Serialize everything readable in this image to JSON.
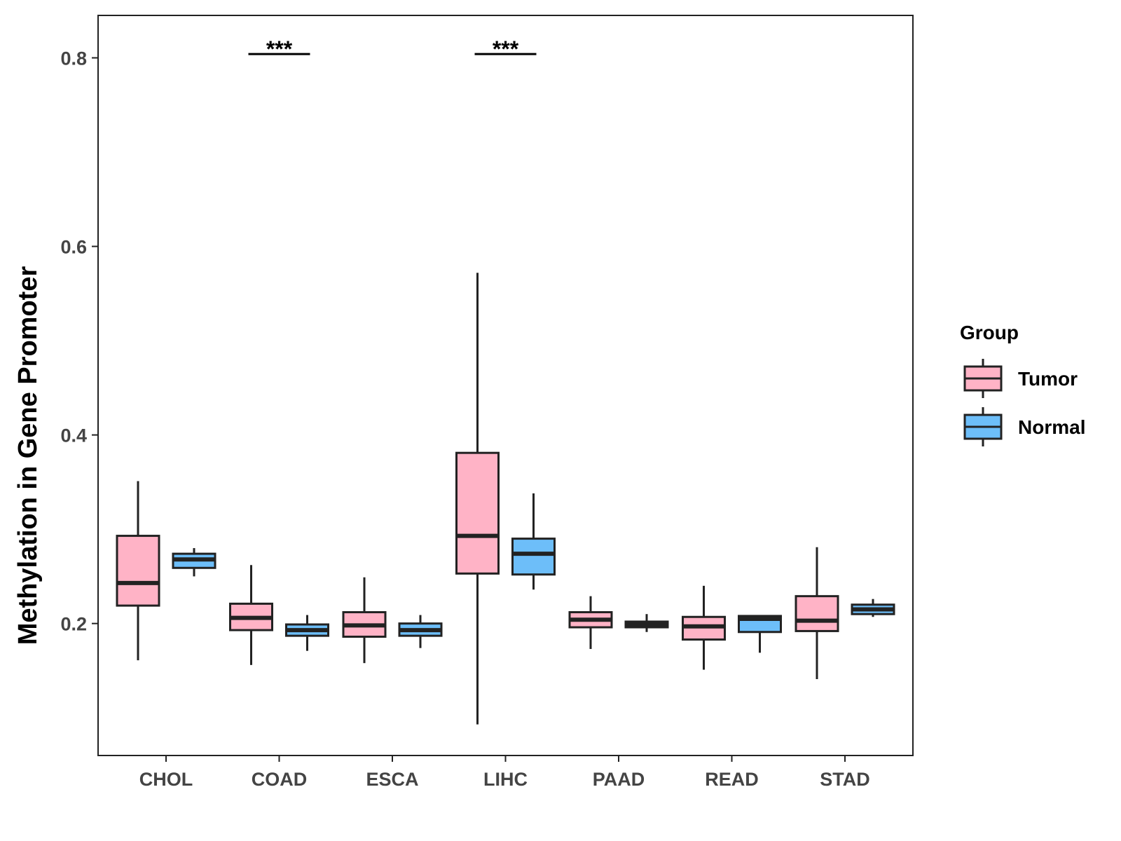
{
  "chart_data": {
    "type": "boxplot",
    "title": "",
    "xlabel": "",
    "ylabel": "Methylation in Gene Promoter",
    "ylim": [
      0.06,
      0.845
    ],
    "yticks": [
      0.2,
      0.4,
      0.6,
      0.8
    ],
    "ytick_labels": [
      "0.2",
      "0.4",
      "0.6",
      "0.8"
    ],
    "grid": false,
    "categories": [
      "CHOL",
      "COAD",
      "ESCA",
      "LIHC",
      "PAAD",
      "READ",
      "STAD"
    ],
    "legend": {
      "title": "Group",
      "position": "right",
      "entries": [
        {
          "name": "Tumor",
          "color": "#FFB3C6"
        },
        {
          "name": "Normal",
          "color": "#6DBEF9"
        }
      ]
    },
    "series": [
      {
        "name": "Tumor",
        "color": "#FFB3C6",
        "boxes": [
          {
            "min": 0.161,
            "q1": 0.219,
            "median": 0.243,
            "q3": 0.293,
            "max": 0.351
          },
          {
            "min": 0.156,
            "q1": 0.193,
            "median": 0.206,
            "q3": 0.221,
            "max": 0.262
          },
          {
            "min": 0.158,
            "q1": 0.186,
            "median": 0.198,
            "q3": 0.212,
            "max": 0.249
          },
          {
            "min": 0.093,
            "q1": 0.253,
            "median": 0.293,
            "q3": 0.381,
            "max": 0.572
          },
          {
            "min": 0.173,
            "q1": 0.196,
            "median": 0.204,
            "q3": 0.212,
            "max": 0.229
          },
          {
            "min": 0.151,
            "q1": 0.183,
            "median": 0.197,
            "q3": 0.207,
            "max": 0.24
          },
          {
            "min": 0.141,
            "q1": 0.192,
            "median": 0.203,
            "q3": 0.229,
            "max": 0.281
          }
        ]
      },
      {
        "name": "Normal",
        "color": "#6DBEF9",
        "boxes": [
          {
            "min": 0.25,
            "q1": 0.259,
            "median": 0.268,
            "q3": 0.274,
            "max": 0.28
          },
          {
            "min": 0.171,
            "q1": 0.187,
            "median": 0.193,
            "q3": 0.199,
            "max": 0.209
          },
          {
            "min": 0.174,
            "q1": 0.187,
            "median": 0.193,
            "q3": 0.2,
            "max": 0.209
          },
          {
            "min": 0.236,
            "q1": 0.252,
            "median": 0.274,
            "q3": 0.29,
            "max": 0.338
          },
          {
            "min": 0.191,
            "q1": 0.196,
            "median": 0.199,
            "q3": 0.202,
            "max": 0.21
          },
          {
            "min": 0.169,
            "q1": 0.191,
            "median": 0.205,
            "q3": 0.208,
            "max": 0.208
          },
          {
            "min": 0.207,
            "q1": 0.21,
            "median": 0.215,
            "q3": 0.22,
            "max": 0.226
          }
        ]
      }
    ],
    "annotations": [
      {
        "category": "COAD",
        "label": "***",
        "y": 0.804
      },
      {
        "category": "LIHC",
        "label": "***",
        "y": 0.804
      }
    ]
  }
}
